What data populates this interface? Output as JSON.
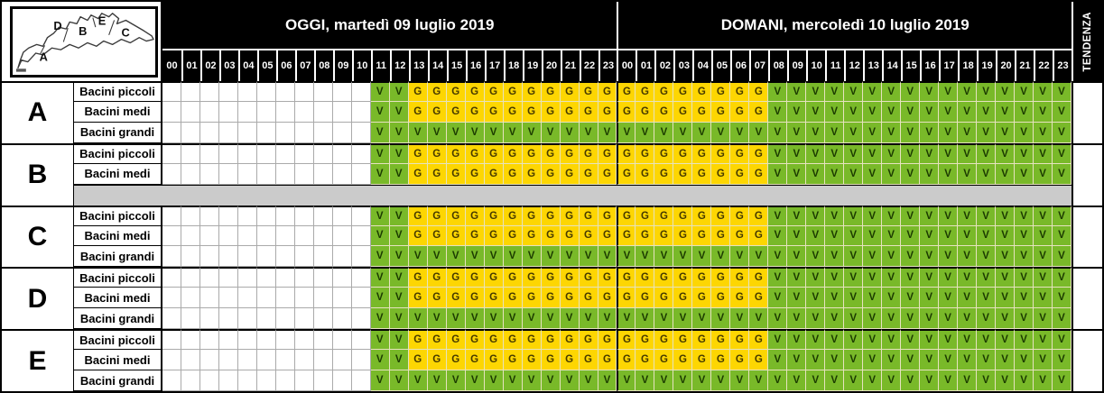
{
  "header": {
    "today": "OGGI, martedì 09 luglio 2019",
    "tomorrow": "DOMANI, mercoledì 10 luglio 2019",
    "tendenza": "TENDENZA",
    "hours": [
      "00",
      "01",
      "02",
      "03",
      "04",
      "05",
      "06",
      "07",
      "08",
      "09",
      "10",
      "11",
      "12",
      "13",
      "14",
      "15",
      "16",
      "17",
      "18",
      "19",
      "20",
      "21",
      "22",
      "23"
    ]
  },
  "map": {
    "zone_labels": [
      "A",
      "B",
      "C",
      "D",
      "E"
    ]
  },
  "colors": {
    "header_bg": "#000000",
    "header_text": "#ffffff",
    "green_v": "#79b929",
    "yellow_g": "#fdd602",
    "empty": "#ffffff",
    "disabled_gray": "#cbcbcb",
    "v_text": "#1b3a00",
    "g_text": "#463a00",
    "grid_line_light": "#e6e2bf",
    "grid_line_empty": "#aaaaaa"
  },
  "legend": {
    "V_means": "verde",
    "G_means": "giallo"
  },
  "zones": [
    {
      "letter": "A",
      "tendenza": "",
      "rows": [
        {
          "label": "Bacini piccoli",
          "today": "...........VVGGGGGGGGGGG",
          "tomorrow": "GGGGGGGGVVVVVVVVVVVVVVVV"
        },
        {
          "label": "Bacini medi",
          "today": "...........VVGGGGGGGGGGG",
          "tomorrow": "GGGGGGGGVVVVVVVVVVVVVVVV"
        },
        {
          "label": "Bacini grandi",
          "today": "...........VVVVVVVVVVVVV",
          "tomorrow": "VVVVVVVVVVVVVVVVVVVVVVVV"
        }
      ]
    },
    {
      "letter": "B",
      "tendenza": "",
      "rows": [
        {
          "label": "Bacini piccoli",
          "today": "...........VVGGGGGGGGGGG",
          "tomorrow": "GGGGGGGGVVVVVVVVVVVVVVVV"
        },
        {
          "label": "Bacini medi",
          "today": "...........VVGGGGGGGGGGG",
          "tomorrow": "GGGGGGGGVVVVVVVVVVVVVVVV"
        },
        {
          "label": "",
          "disabled": true,
          "today": "",
          "tomorrow": ""
        }
      ]
    },
    {
      "letter": "C",
      "tendenza": "",
      "rows": [
        {
          "label": "Bacini piccoli",
          "today": "...........VVGGGGGGGGGGG",
          "tomorrow": "GGGGGGGGVVVVVVVVVVVVVVVV"
        },
        {
          "label": "Bacini medi",
          "today": "...........VVGGGGGGGGGGG",
          "tomorrow": "GGGGGGGGVVVVVVVVVVVVVVVV"
        },
        {
          "label": "Bacini grandi",
          "today": "...........VVVVVVVVVVVVV",
          "tomorrow": "VVVVVVVVVVVVVVVVVVVVVVVV"
        }
      ]
    },
    {
      "letter": "D",
      "tendenza": "",
      "rows": [
        {
          "label": "Bacini piccoli",
          "today": "...........VVGGGGGGGGGGG",
          "tomorrow": "GGGGGGGGVVVVVVVVVVVVVVVV"
        },
        {
          "label": "Bacini medi",
          "today": "...........VVGGGGGGGGGGG",
          "tomorrow": "GGGGGGGGVVVVVVVVVVVVVVVV"
        },
        {
          "label": "Bacini grandi",
          "today": "...........VVVVVVVVVVVVV",
          "tomorrow": "VVVVVVVVVVVVVVVVVVVVVVVV"
        }
      ]
    },
    {
      "letter": "E",
      "tendenza": "",
      "rows": [
        {
          "label": "Bacini piccoli",
          "today": "...........VVGGGGGGGGGGG",
          "tomorrow": "GGGGGGGGVVVVVVVVVVVVVVVV"
        },
        {
          "label": "Bacini medi",
          "today": "...........VVGGGGGGGGGGG",
          "tomorrow": "GGGGGGGGVVVVVVVVVVVVVVVV"
        },
        {
          "label": "Bacini grandi",
          "today": "...........VVVVVVVVVVVVV",
          "tomorrow": "VVVVVVVVVVVVVVVVVVVVVVVV"
        }
      ]
    }
  ]
}
